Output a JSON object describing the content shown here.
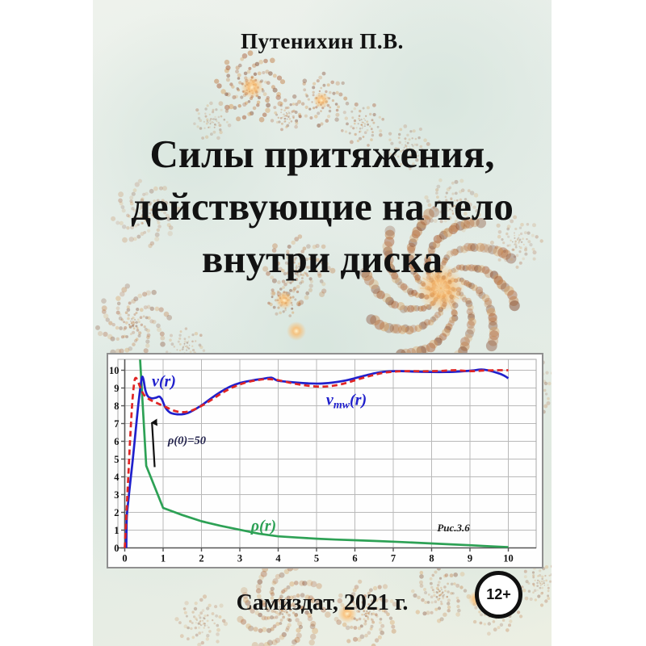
{
  "cover": {
    "author": "Путенихин П.В.",
    "title_lines": [
      "Силы притяжения,",
      "действующие на тело",
      "внутри диска"
    ],
    "publisher": "Самиздат, 2021 г.",
    "age_badge": "12+"
  },
  "colors": {
    "curve_v": "#2020cc",
    "curve_vmw": "#e02525",
    "curve_rho": "#2da155",
    "grid": "#b9b9b9",
    "axis": "#555555",
    "panel_border": "#8f8f8f",
    "text": "#131313"
  },
  "chart_data": {
    "type": "line",
    "title": "",
    "xlabel": "",
    "ylabel": "",
    "xlim": [
      0,
      10
    ],
    "ylim": [
      0,
      10
    ],
    "grid": true,
    "x_ticks": [
      0,
      1,
      2,
      3,
      4,
      5,
      6,
      7,
      8,
      9,
      10
    ],
    "y_ticks": [
      0,
      1,
      2,
      3,
      4,
      5,
      6,
      7,
      8,
      9,
      10
    ],
    "series": [
      {
        "name": "ρ(r)",
        "key": "rho",
        "color": "#2da155",
        "style": "solid",
        "smooth": false,
        "width": 2.7,
        "points": [
          [
            0.4,
            10.6
          ],
          [
            0.56,
            4.62
          ],
          [
            1.0,
            2.25
          ],
          [
            1.5,
            1.85
          ],
          [
            2.0,
            1.5
          ],
          [
            2.5,
            1.24
          ],
          [
            3.0,
            1.02
          ],
          [
            3.5,
            0.8
          ],
          [
            4.0,
            0.65
          ],
          [
            4.5,
            0.58
          ],
          [
            5.0,
            0.52
          ],
          [
            5.5,
            0.47
          ],
          [
            6.0,
            0.43
          ],
          [
            6.5,
            0.39
          ],
          [
            7.0,
            0.35
          ],
          [
            7.5,
            0.3
          ],
          [
            8.0,
            0.25
          ],
          [
            8.5,
            0.2
          ],
          [
            9.0,
            0.15
          ],
          [
            9.5,
            0.09
          ],
          [
            10.0,
            0.04
          ]
        ]
      },
      {
        "name": "v(r)",
        "key": "v",
        "color": "#2020cc",
        "style": "solid",
        "smooth": true,
        "width": 2.7,
        "points": [
          [
            0.04,
            0.0
          ],
          [
            0.05,
            1.6
          ],
          [
            0.08,
            2.4
          ],
          [
            0.14,
            3.6
          ],
          [
            0.21,
            5.0
          ],
          [
            0.28,
            6.5
          ],
          [
            0.35,
            8.0
          ],
          [
            0.41,
            9.1
          ],
          [
            0.45,
            9.62
          ],
          [
            0.49,
            9.45
          ],
          [
            0.54,
            8.85
          ],
          [
            0.61,
            8.52
          ],
          [
            0.71,
            8.42
          ],
          [
            0.82,
            8.46
          ],
          [
            0.9,
            8.52
          ],
          [
            0.97,
            8.35
          ],
          [
            1.06,
            7.9
          ],
          [
            1.18,
            7.62
          ],
          [
            1.32,
            7.53
          ],
          [
            1.48,
            7.52
          ],
          [
            1.65,
            7.6
          ],
          [
            1.85,
            7.82
          ],
          [
            2.05,
            8.1
          ],
          [
            2.25,
            8.42
          ],
          [
            2.5,
            8.78
          ],
          [
            2.75,
            9.08
          ],
          [
            3.0,
            9.28
          ],
          [
            3.3,
            9.42
          ],
          [
            3.6,
            9.52
          ],
          [
            3.82,
            9.58
          ],
          [
            3.98,
            9.42
          ],
          [
            4.2,
            9.36
          ],
          [
            4.5,
            9.3
          ],
          [
            4.8,
            9.26
          ],
          [
            5.1,
            9.25
          ],
          [
            5.4,
            9.3
          ],
          [
            5.7,
            9.4
          ],
          [
            6.0,
            9.55
          ],
          [
            6.3,
            9.72
          ],
          [
            6.6,
            9.87
          ],
          [
            6.9,
            9.94
          ],
          [
            7.2,
            9.95
          ],
          [
            7.6,
            9.92
          ],
          [
            8.0,
            9.9
          ],
          [
            8.4,
            9.9
          ],
          [
            8.75,
            9.93
          ],
          [
            9.05,
            9.98
          ],
          [
            9.3,
            10.04
          ],
          [
            9.5,
            9.98
          ],
          [
            9.7,
            9.86
          ],
          [
            9.87,
            9.72
          ],
          [
            10.0,
            9.55
          ]
        ]
      },
      {
        "name": "v_mw(r)",
        "key": "vmw",
        "color": "#e02525",
        "style": "dashed",
        "smooth": true,
        "width": 2.7,
        "points": [
          [
            0.0,
            0.0
          ],
          [
            0.05,
            2.2
          ],
          [
            0.1,
            4.4
          ],
          [
            0.15,
            6.5
          ],
          [
            0.2,
            8.3
          ],
          [
            0.25,
            9.35
          ],
          [
            0.29,
            9.57
          ],
          [
            0.34,
            9.38
          ],
          [
            0.42,
            8.95
          ],
          [
            0.5,
            8.62
          ],
          [
            0.6,
            8.42
          ],
          [
            0.72,
            8.27
          ],
          [
            0.86,
            8.13
          ],
          [
            1.0,
            8.0
          ],
          [
            1.15,
            7.85
          ],
          [
            1.32,
            7.7
          ],
          [
            1.5,
            7.64
          ],
          [
            1.7,
            7.7
          ],
          [
            1.9,
            7.88
          ],
          [
            2.1,
            8.12
          ],
          [
            2.35,
            8.46
          ],
          [
            2.6,
            8.8
          ],
          [
            2.9,
            9.12
          ],
          [
            3.2,
            9.33
          ],
          [
            3.5,
            9.46
          ],
          [
            3.75,
            9.5
          ],
          [
            4.0,
            9.44
          ],
          [
            4.3,
            9.3
          ],
          [
            4.6,
            9.18
          ],
          [
            4.9,
            9.1
          ],
          [
            5.2,
            9.08
          ],
          [
            5.5,
            9.15
          ],
          [
            5.8,
            9.3
          ],
          [
            6.1,
            9.5
          ],
          [
            6.4,
            9.68
          ],
          [
            6.7,
            9.84
          ],
          [
            7.0,
            9.92
          ],
          [
            7.4,
            9.95
          ],
          [
            7.8,
            9.94
          ],
          [
            8.2,
            9.96
          ],
          [
            8.6,
            10.0
          ],
          [
            9.0,
            9.95
          ],
          [
            9.35,
            9.98
          ],
          [
            9.7,
            10.0
          ],
          [
            10.0,
            10.0
          ]
        ]
      }
    ],
    "annotations": [
      {
        "id": "v-label",
        "text": "v(r)",
        "x": 1.02,
        "y": 9.1,
        "color": "#2020cc",
        "size": 20
      },
      {
        "id": "vmw-label",
        "pre": "v",
        "sub": "mw",
        "post": "(r)",
        "x": 5.78,
        "y": 8.05,
        "color": "#2020cc",
        "size": 20
      },
      {
        "id": "rho0-label",
        "text": "ρ(0)=50",
        "x": 1.62,
        "y": 5.85,
        "color": "#26264f",
        "size": 14.5
      },
      {
        "id": "rho-label",
        "text": "ρ(r)",
        "x": 3.62,
        "y": 0.95,
        "color": "#2da155",
        "size": 20
      },
      {
        "id": "fig-label",
        "text": "Рис.3.6",
        "x": 8.57,
        "y": 0.93,
        "color": "#1c1c1c",
        "size": 13
      }
    ],
    "arrow": {
      "from": [
        0.78,
        4.55
      ],
      "to": [
        0.71,
        7.05
      ]
    }
  }
}
